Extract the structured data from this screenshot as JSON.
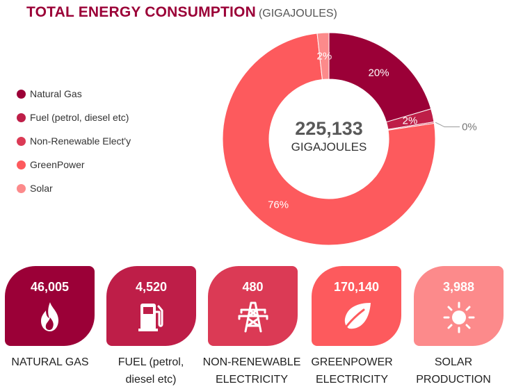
{
  "title": {
    "main": "TOTAL ENERGY CONSUMPTION",
    "sub": "(GIGAJOULES)"
  },
  "colors": {
    "natural_gas": "#9b0037",
    "fuel": "#be1e48",
    "non_renewable": "#db3a55",
    "greenpower": "#fd5a5d",
    "solar": "#fc8a8b"
  },
  "legend": [
    {
      "label": "Natural Gas",
      "color": "#9b0037"
    },
    {
      "label": "Fuel (petrol, diesel etc)",
      "color": "#be1e48"
    },
    {
      "label": "Non-Renewable Elect'y",
      "color": "#db3a55"
    },
    {
      "label": "GreenPower",
      "color": "#fd5a5d"
    },
    {
      "label": "Solar",
      "color": "#fc8a8b"
    }
  ],
  "center": {
    "value": "225,133",
    "unit": "GIGAJOULES"
  },
  "chart_data": {
    "type": "pie",
    "donut": true,
    "title": "TOTAL ENERGY CONSUMPTION",
    "subtitle": "(GIGAJOULES)",
    "categories": [
      "Natural Gas",
      "Fuel (petrol, diesel etc)",
      "Non-Renewable Elect'y",
      "GreenPower",
      "Solar"
    ],
    "values": [
      46005,
      4520,
      480,
      170140,
      3988
    ],
    "percent_labels": [
      "20%",
      "2%",
      "0%",
      "76%",
      "2%"
    ],
    "colors": [
      "#9b0037",
      "#be1e48",
      "#db3a55",
      "#fd5a5d",
      "#fc8a8b"
    ],
    "total": "225,133",
    "legend_position": "left"
  },
  "tiles": [
    {
      "value": "46,005",
      "label": "NATURAL GAS",
      "icon": "flame-icon",
      "color": "#9b0037"
    },
    {
      "value": "4,520",
      "label": "FUEL (petrol,\ndiesel etc)",
      "icon": "fuel-pump-icon",
      "color": "#be1e48"
    },
    {
      "value": "480",
      "label": "NON-RENEWABLE\nELECTRICITY",
      "icon": "power-tower-icon",
      "color": "#db3a55"
    },
    {
      "value": "170,140",
      "label": "GREENPOWER\nELECTRICITY",
      "icon": "leaf-icon",
      "color": "#fd5a5d"
    },
    {
      "value": "3,988",
      "label": "SOLAR\nPRODUCTION",
      "icon": "sun-icon",
      "color": "#fc8a8b"
    }
  ]
}
